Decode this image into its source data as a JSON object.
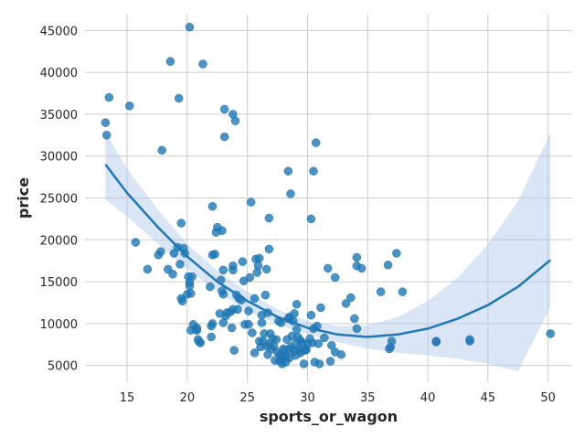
{
  "chart_data": {
    "type": "scatter",
    "title": "",
    "xlabel": "sports_or_wagon",
    "ylabel": "price",
    "xlim": [
      11.5,
      52
    ],
    "ylim": [
      3000,
      47000
    ],
    "x_ticks": [
      15,
      20,
      25,
      30,
      35,
      40,
      45,
      50
    ],
    "y_ticks": [
      5000,
      10000,
      15000,
      20000,
      25000,
      30000,
      35000,
      40000,
      45000
    ],
    "grid": true,
    "legend": "none",
    "point_color": "#1f77b4",
    "line_color": "#1f77b4",
    "band_color": "#aec7e8",
    "points": [
      [
        13.2,
        34000
      ],
      [
        13.3,
        32500
      ],
      [
        13.5,
        37000
      ],
      [
        15.2,
        36000
      ],
      [
        15.7,
        19700
      ],
      [
        16.7,
        16500
      ],
      [
        17.6,
        18200
      ],
      [
        17.8,
        18600
      ],
      [
        17.9,
        30700
      ],
      [
        18.4,
        16500
      ],
      [
        18.6,
        41300
      ],
      [
        18.8,
        15900
      ],
      [
        18.9,
        18400
      ],
      [
        19.2,
        19100
      ],
      [
        19.3,
        36900
      ],
      [
        19.4,
        17100
      ],
      [
        19.5,
        13000
      ],
      [
        19.5,
        22000
      ],
      [
        19.6,
        12700
      ],
      [
        19.7,
        19000
      ],
      [
        19.8,
        18400
      ],
      [
        20.0,
        13500
      ],
      [
        20.1,
        15600
      ],
      [
        20.2,
        45400
      ],
      [
        20.2,
        14900
      ],
      [
        20.2,
        14500
      ],
      [
        20.3,
        13600
      ],
      [
        20.3,
        9200
      ],
      [
        20.4,
        15600
      ],
      [
        20.5,
        9900
      ],
      [
        20.7,
        9300
      ],
      [
        20.8,
        9500
      ],
      [
        20.8,
        9200
      ],
      [
        20.9,
        8100
      ],
      [
        21.0,
        7800
      ],
      [
        21.1,
        7700
      ],
      [
        21.3,
        41000
      ],
      [
        21.9,
        14400
      ],
      [
        22.0,
        8400
      ],
      [
        22.0,
        9700
      ],
      [
        22.1,
        10000
      ],
      [
        22.1,
        24000
      ],
      [
        22.1,
        18200
      ],
      [
        22.3,
        18300
      ],
      [
        22.4,
        20900
      ],
      [
        22.5,
        21500
      ],
      [
        22.7,
        11200
      ],
      [
        22.8,
        15200
      ],
      [
        22.9,
        21100
      ],
      [
        22.9,
        13900
      ],
      [
        23.0,
        16400
      ],
      [
        23.0,
        10100
      ],
      [
        23.0,
        13500
      ],
      [
        23.1,
        35600
      ],
      [
        23.1,
        32300
      ],
      [
        23.2,
        10900
      ],
      [
        23.3,
        11300
      ],
      [
        23.6,
        11400
      ],
      [
        23.7,
        9500
      ],
      [
        23.8,
        16900
      ],
      [
        23.8,
        16400
      ],
      [
        23.8,
        35000
      ],
      [
        23.8,
        11700
      ],
      [
        23.9,
        6800
      ],
      [
        24.0,
        34200
      ],
      [
        24.1,
        13400
      ],
      [
        24.2,
        11700
      ],
      [
        24.3,
        13000
      ],
      [
        24.5,
        12800
      ],
      [
        24.6,
        17400
      ],
      [
        24.7,
        15100
      ],
      [
        24.8,
        9900
      ],
      [
        25.1,
        9900
      ],
      [
        25.1,
        11500
      ],
      [
        25.2,
        15500
      ],
      [
        25.3,
        24500
      ],
      [
        25.4,
        8900
      ],
      [
        25.6,
        13000
      ],
      [
        25.6,
        6500
      ],
      [
        25.7,
        17700
      ],
      [
        25.8,
        16100
      ],
      [
        25.9,
        16900
      ],
      [
        26.0,
        17800
      ],
      [
        26.0,
        7900
      ],
      [
        26.1,
        7200
      ],
      [
        26.2,
        10100
      ],
      [
        26.2,
        11000
      ],
      [
        26.3,
        7900
      ],
      [
        26.4,
        8800
      ],
      [
        26.5,
        13400
      ],
      [
        26.6,
        7300
      ],
      [
        26.6,
        16500
      ],
      [
        26.7,
        11300
      ],
      [
        26.7,
        6300
      ],
      [
        26.8,
        7600
      ],
      [
        26.8,
        18900
      ],
      [
        26.8,
        22600
      ],
      [
        26.9,
        8800
      ],
      [
        27.0,
        7000
      ],
      [
        27.1,
        8200
      ],
      [
        27.2,
        7300
      ],
      [
        27.3,
        5600
      ],
      [
        27.4,
        8100
      ],
      [
        27.5,
        6600
      ],
      [
        27.6,
        10300
      ],
      [
        27.7,
        5500
      ],
      [
        27.7,
        6300
      ],
      [
        27.8,
        5700
      ],
      [
        27.8,
        10100
      ],
      [
        27.9,
        6100
      ],
      [
        27.9,
        5200
      ],
      [
        28.0,
        7000
      ],
      [
        28.1,
        6800
      ],
      [
        28.2,
        6100
      ],
      [
        28.2,
        5400
      ],
      [
        28.3,
        8100
      ],
      [
        28.4,
        10600
      ],
      [
        28.4,
        28200
      ],
      [
        28.5,
        6900
      ],
      [
        28.5,
        5900
      ],
      [
        28.5,
        10800
      ],
      [
        28.6,
        25500
      ],
      [
        28.6,
        7200
      ],
      [
        28.7,
        8500
      ],
      [
        28.8,
        10300
      ],
      [
        28.9,
        6700
      ],
      [
        28.9,
        11200
      ],
      [
        29.0,
        7600
      ],
      [
        29.0,
        6200
      ],
      [
        29.1,
        12300
      ],
      [
        29.1,
        9300
      ],
      [
        29.2,
        8400
      ],
      [
        29.3,
        7000
      ],
      [
        29.4,
        8000
      ],
      [
        29.4,
        6500
      ],
      [
        29.5,
        6800
      ],
      [
        29.6,
        7700
      ],
      [
        29.7,
        5200
      ],
      [
        29.8,
        6800
      ],
      [
        29.9,
        6900
      ],
      [
        30.0,
        7600
      ],
      [
        30.2,
        8200
      ],
      [
        30.3,
        22500
      ],
      [
        30.3,
        11000
      ],
      [
        30.4,
        7700
      ],
      [
        30.5,
        28200
      ],
      [
        30.5,
        9400
      ],
      [
        30.6,
        5400
      ],
      [
        30.7,
        31600
      ],
      [
        30.8,
        9700
      ],
      [
        30.9,
        7600
      ],
      [
        31.0,
        5200
      ],
      [
        31.1,
        11900
      ],
      [
        31.4,
        8300
      ],
      [
        31.7,
        16600
      ],
      [
        31.9,
        5500
      ],
      [
        32.0,
        7400
      ],
      [
        32.3,
        15500
      ],
      [
        32.3,
        6600
      ],
      [
        32.8,
        6300
      ],
      [
        33.2,
        12400
      ],
      [
        33.6,
        13100
      ],
      [
        33.9,
        10600
      ],
      [
        34.1,
        9400
      ],
      [
        34.1,
        17900
      ],
      [
        34.1,
        16900
      ],
      [
        34.5,
        16600
      ],
      [
        36.1,
        13800
      ],
      [
        36.7,
        17000
      ],
      [
        36.8,
        7000
      ],
      [
        36.9,
        7200
      ],
      [
        37.0,
        7900
      ],
      [
        37.4,
        18400
      ],
      [
        37.9,
        13800
      ],
      [
        40.7,
        7800
      ],
      [
        40.7,
        7900
      ],
      [
        43.5,
        8100
      ],
      [
        43.5,
        7900
      ],
      [
        50.2,
        8800
      ]
    ],
    "fit_line": [
      [
        13.2,
        29000
      ],
      [
        15,
        25600
      ],
      [
        17.5,
        21600
      ],
      [
        20,
        18000
      ],
      [
        22.5,
        15000
      ],
      [
        25,
        12700
      ],
      [
        27.5,
        10800
      ],
      [
        30,
        9500
      ],
      [
        32.5,
        8700
      ],
      [
        35,
        8400
      ],
      [
        37.5,
        8700
      ],
      [
        40,
        9400
      ],
      [
        42.5,
        10600
      ],
      [
        45,
        12200
      ],
      [
        47.5,
        14400
      ],
      [
        50.2,
        17600
      ]
    ],
    "band_upper": [
      [
        13.2,
        32800
      ],
      [
        15,
        28500
      ],
      [
        17.5,
        23700
      ],
      [
        20,
        19500
      ],
      [
        22.5,
        16300
      ],
      [
        25,
        13800
      ],
      [
        27.5,
        11700
      ],
      [
        30,
        10300
      ],
      [
        32.5,
        9700
      ],
      [
        35,
        9800
      ],
      [
        37.5,
        10800
      ],
      [
        40,
        12700
      ],
      [
        42.5,
        15500
      ],
      [
        45,
        19500
      ],
      [
        47.5,
        24600
      ],
      [
        50.2,
        32800
      ]
    ],
    "band_lower": [
      [
        13.2,
        24800
      ],
      [
        15,
        22800
      ],
      [
        17.5,
        19600
      ],
      [
        20,
        16500
      ],
      [
        22.5,
        13800
      ],
      [
        25,
        11500
      ],
      [
        27.5,
        9900
      ],
      [
        30,
        8700
      ],
      [
        32.5,
        7800
      ],
      [
        35,
        7000
      ],
      [
        37.5,
        6500
      ],
      [
        40,
        6200
      ],
      [
        42.5,
        5800
      ],
      [
        45,
        5200
      ],
      [
        47.5,
        4300
      ],
      [
        50.2,
        12000
      ]
    ]
  }
}
